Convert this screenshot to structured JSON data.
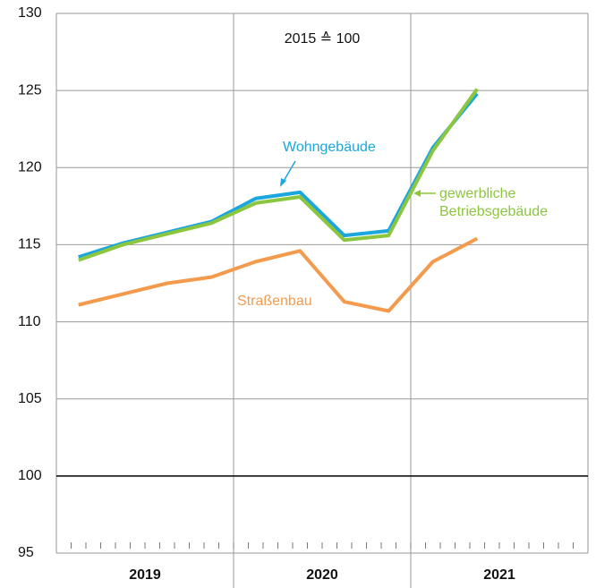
{
  "chart_data": {
    "type": "line",
    "annotation": "2015 ≙ 100",
    "year_labels": [
      "2019",
      "2020",
      "2021"
    ],
    "categories": [
      null,
      null,
      null,
      null,
      null,
      null,
      null,
      null,
      null,
      null
    ],
    "series": [
      {
        "name": "Wohngebäude",
        "color": "#1ba6dd",
        "values": [
          114.2,
          115.1,
          115.8,
          116.5,
          118.0,
          118.4,
          115.6,
          115.9,
          121.3,
          124.8
        ]
      },
      {
        "name": "gewerbliche Betriebsgebäude",
        "color": "#8cc63f",
        "values": [
          114.0,
          115.0,
          115.7,
          116.4,
          117.7,
          118.1,
          115.3,
          115.6,
          121.1,
          125.1
        ]
      },
      {
        "name": "Straßenbau",
        "color": "#f39a4c",
        "values": [
          111.1,
          111.8,
          112.5,
          112.9,
          113.9,
          114.6,
          111.3,
          110.7,
          113.9,
          115.4
        ]
      }
    ],
    "ylim": [
      95,
      130
    ],
    "yticks": [
      95,
      100,
      105,
      110,
      115,
      120,
      125,
      130
    ],
    "baseline": 100,
    "grid": true
  }
}
